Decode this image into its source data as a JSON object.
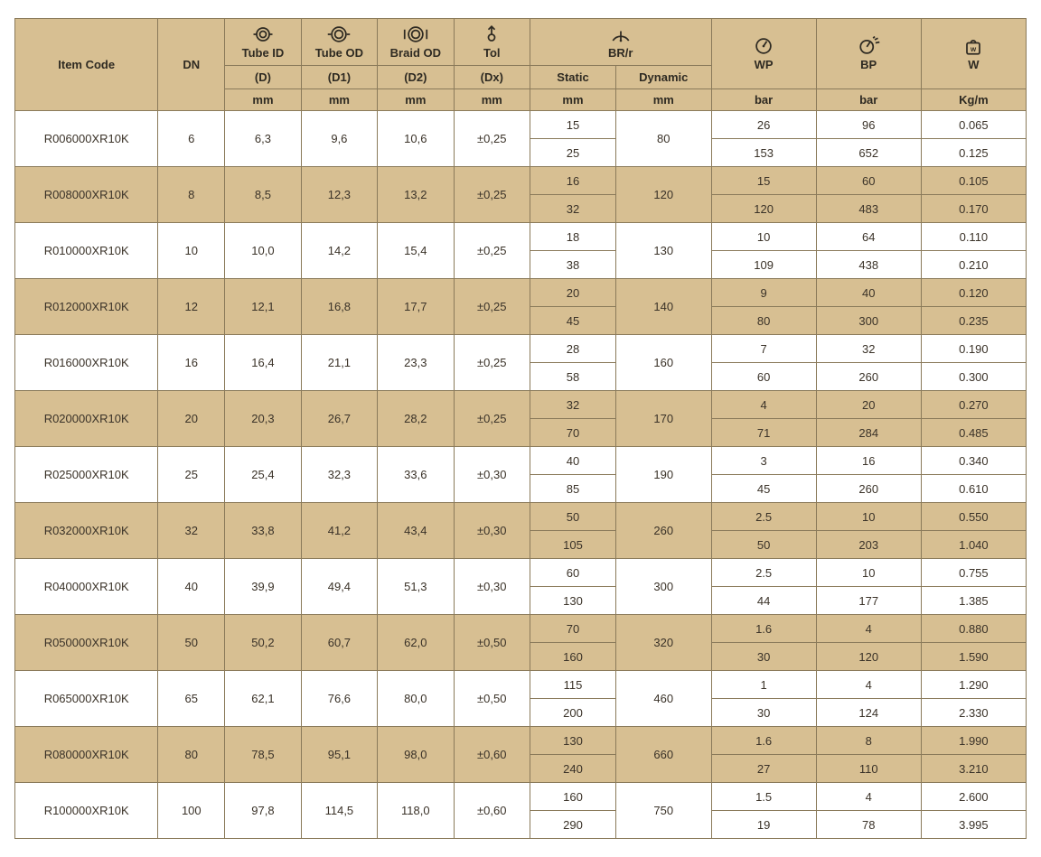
{
  "theme": {
    "header_bg": "#d7bf92",
    "stripe_bg": "#d7bf92",
    "plain_bg": "#ffffff",
    "border": "#8a7a5a",
    "text": "#3a3228"
  },
  "headers": {
    "item_code": "Item Code",
    "dn": "DN",
    "tube_id": "Tube ID",
    "tube_od": "Tube OD",
    "braid_od": "Braid OD",
    "tol": "Tol",
    "brr": "BR/r",
    "wp": "WP",
    "bp": "BP",
    "w": "W",
    "d": "(D)",
    "d1": "(D1)",
    "d2": "(D2)",
    "dx": "(Dx)",
    "static": "Static",
    "dynamic": "Dynamic",
    "mm": "mm",
    "bar": "bar",
    "kgm": "Kg/m"
  },
  "icons": {
    "tube_id": "ring-inner",
    "tube_od": "ring-outer",
    "braid_od": "ring-bracket",
    "tol": "tolerance-arrow",
    "brr": "radius-arc",
    "wp": "gauge",
    "bp": "gauge-burst",
    "w": "weight"
  },
  "rows": [
    {
      "code": "R006000XR10K",
      "dn": "6",
      "d": "6,3",
      "d1": "9,6",
      "d2": "10,6",
      "tol": "±0,25",
      "static": [
        "15",
        "25"
      ],
      "dynamic": "80",
      "wp": [
        "26",
        "153"
      ],
      "bp": [
        "96",
        "652"
      ],
      "w": [
        "0.065",
        "0.125"
      ]
    },
    {
      "code": "R008000XR10K",
      "dn": "8",
      "d": "8,5",
      "d1": "12,3",
      "d2": "13,2",
      "tol": "±0,25",
      "static": [
        "16",
        "32"
      ],
      "dynamic": "120",
      "wp": [
        "15",
        "120"
      ],
      "bp": [
        "60",
        "483"
      ],
      "w": [
        "0.105",
        "0.170"
      ]
    },
    {
      "code": "R010000XR10K",
      "dn": "10",
      "d": "10,0",
      "d1": "14,2",
      "d2": "15,4",
      "tol": "±0,25",
      "static": [
        "18",
        "38"
      ],
      "dynamic": "130",
      "wp": [
        "10",
        "109"
      ],
      "bp": [
        "64",
        "438"
      ],
      "w": [
        "0.110",
        "0.210"
      ]
    },
    {
      "code": "R012000XR10K",
      "dn": "12",
      "d": "12,1",
      "d1": "16,8",
      "d2": "17,7",
      "tol": "±0,25",
      "static": [
        "20",
        "45"
      ],
      "dynamic": "140",
      "wp": [
        "9",
        "80"
      ],
      "bp": [
        "40",
        "300"
      ],
      "w": [
        "0.120",
        "0.235"
      ]
    },
    {
      "code": "R016000XR10K",
      "dn": "16",
      "d": "16,4",
      "d1": "21,1",
      "d2": "23,3",
      "tol": "±0,25",
      "static": [
        "28",
        "58"
      ],
      "dynamic": "160",
      "wp": [
        "7",
        "60"
      ],
      "bp": [
        "32",
        "260"
      ],
      "w": [
        "0.190",
        "0.300"
      ]
    },
    {
      "code": "R020000XR10K",
      "dn": "20",
      "d": "20,3",
      "d1": "26,7",
      "d2": "28,2",
      "tol": "±0,25",
      "static": [
        "32",
        "70"
      ],
      "dynamic": "170",
      "wp": [
        "4",
        "71"
      ],
      "bp": [
        "20",
        "284"
      ],
      "w": [
        "0.270",
        "0.485"
      ]
    },
    {
      "code": "R025000XR10K",
      "dn": "25",
      "d": "25,4",
      "d1": "32,3",
      "d2": "33,6",
      "tol": "±0,30",
      "static": [
        "40",
        "85"
      ],
      "dynamic": "190",
      "wp": [
        "3",
        "45"
      ],
      "bp": [
        "16",
        "260"
      ],
      "w": [
        "0.340",
        "0.610"
      ]
    },
    {
      "code": "R032000XR10K",
      "dn": "32",
      "d": "33,8",
      "d1": "41,2",
      "d2": "43,4",
      "tol": "±0,30",
      "static": [
        "50",
        "105"
      ],
      "dynamic": "260",
      "wp": [
        "2.5",
        "50"
      ],
      "bp": [
        "10",
        "203"
      ],
      "w": [
        "0.550",
        "1.040"
      ]
    },
    {
      "code": "R040000XR10K",
      "dn": "40",
      "d": "39,9",
      "d1": "49,4",
      "d2": "51,3",
      "tol": "±0,30",
      "static": [
        "60",
        "130"
      ],
      "dynamic": "300",
      "wp": [
        "2.5",
        "44"
      ],
      "bp": [
        "10",
        "177"
      ],
      "w": [
        "0.755",
        "1.385"
      ]
    },
    {
      "code": "R050000XR10K",
      "dn": "50",
      "d": "50,2",
      "d1": "60,7",
      "d2": "62,0",
      "tol": "±0,50",
      "static": [
        "70",
        "160"
      ],
      "dynamic": "320",
      "wp": [
        "1.6",
        "30"
      ],
      "bp": [
        "4",
        "120"
      ],
      "w": [
        "0.880",
        "1.590"
      ]
    },
    {
      "code": "R065000XR10K",
      "dn": "65",
      "d": "62,1",
      "d1": "76,6",
      "d2": "80,0",
      "tol": "±0,50",
      "static": [
        "115",
        "200"
      ],
      "dynamic": "460",
      "wp": [
        "1",
        "30"
      ],
      "bp": [
        "4",
        "124"
      ],
      "w": [
        "1.290",
        "2.330"
      ]
    },
    {
      "code": "R080000XR10K",
      "dn": "80",
      "d": "78,5",
      "d1": "95,1",
      "d2": "98,0",
      "tol": "±0,60",
      "static": [
        "130",
        "240"
      ],
      "dynamic": "660",
      "wp": [
        "1.6",
        "27"
      ],
      "bp": [
        "8",
        "110"
      ],
      "w": [
        "1.990",
        "3.210"
      ]
    },
    {
      "code": "R100000XR10K",
      "dn": "100",
      "d": "97,8",
      "d1": "114,5",
      "d2": "118,0",
      "tol": "±0,60",
      "static": [
        "160",
        "290"
      ],
      "dynamic": "750",
      "wp": [
        "1.5",
        "19"
      ],
      "bp": [
        "4",
        "78"
      ],
      "w": [
        "2.600",
        "3.995"
      ]
    }
  ]
}
